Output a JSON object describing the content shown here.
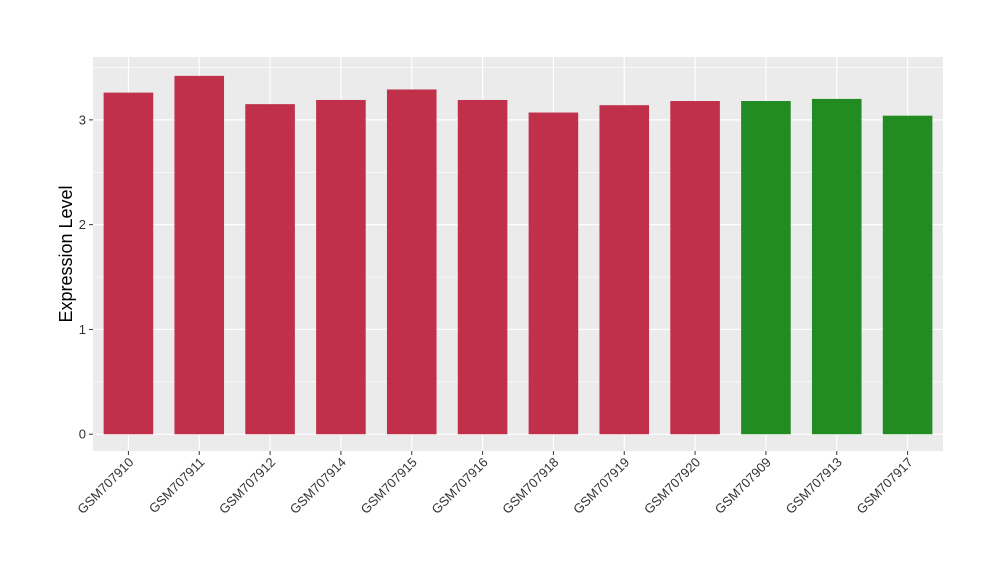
{
  "chart_data": {
    "type": "bar",
    "title": "",
    "xlabel": "",
    "ylabel": "Expression Level",
    "ylim": [
      -0.16,
      3.6
    ],
    "yticks": [
      0,
      1,
      2,
      3
    ],
    "grid": true,
    "legend": "none",
    "categories": [
      "GSM707910",
      "GSM707911",
      "GSM707912",
      "GSM707914",
      "GSM707915",
      "GSM707916",
      "GSM707918",
      "GSM707919",
      "GSM707920",
      "GSM707909",
      "GSM707913",
      "GSM707917"
    ],
    "values": [
      3.26,
      3.42,
      3.15,
      3.19,
      3.29,
      3.19,
      3.07,
      3.14,
      3.18,
      3.18,
      3.2,
      3.04
    ],
    "colors": [
      "#c0304a",
      "#c0304a",
      "#c0304a",
      "#c0304a",
      "#c0304a",
      "#c0304a",
      "#c0304a",
      "#c0304a",
      "#c0304a",
      "#228b22",
      "#228b22",
      "#228b22"
    ],
    "panel_background": "#ebebeb",
    "gridline_color": "#ffffff"
  }
}
